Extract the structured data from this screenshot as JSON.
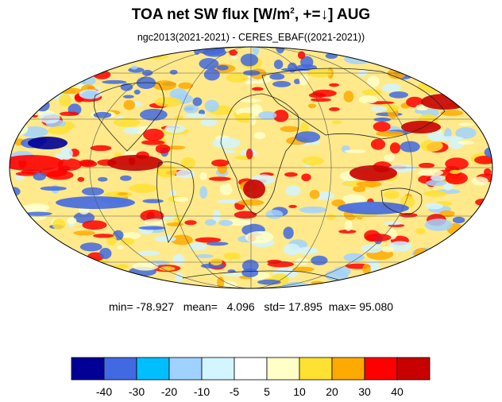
{
  "title": {
    "main": "TOA net SW flux [W/m",
    "sup": "2",
    "rest": ", +=↓]  AUG"
  },
  "subtitle": "ngc2013(2021-2021) - CERES_EBAF((2021-2021))",
  "stats": {
    "min_label": "min=",
    "min": "-78.927",
    "mean_label": "mean=",
    "mean": "4.096",
    "std_label": "std=",
    "std": "17.895",
    "max_label": "max=",
    "max": "95.080"
  },
  "colorbar": {
    "colors": [
      "#000096",
      "#4169e1",
      "#00bfff",
      "#a0d2ff",
      "#d2f5ff",
      "#ffffff",
      "#ffffc8",
      "#ffe132",
      "#ffaa00",
      "#ff0000",
      "#c80000"
    ],
    "tick_labels": [
      "-40",
      "-30",
      "-20",
      "-10",
      "-5",
      "5",
      "10",
      "20",
      "30",
      "40"
    ]
  },
  "map": {
    "projection": "mollweide",
    "ocean_pattern_colors": [
      "#ffe132",
      "#ffffc8",
      "#a0d2ff",
      "#ff0000",
      "#4169e1",
      "#d2f5ff",
      "#ffaa00"
    ]
  }
}
